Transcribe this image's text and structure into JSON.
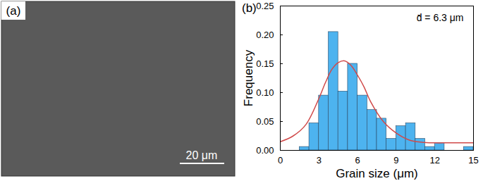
{
  "image": {
    "label": "(a)",
    "scale_bar": "20 μm"
  },
  "chart_data": {
    "type": "histogram",
    "panel_label": "(b)",
    "annotation": "d̄ = 6.3 μm",
    "xlabel": "Grain size (μm)",
    "ylabel": "Frequency",
    "bins": [
      1.5,
      2.25,
      3,
      3.75,
      4.5,
      5.25,
      6,
      6.75,
      7.5,
      8.25,
      9,
      9.75,
      10.5,
      11.25,
      12,
      12.75,
      13.5,
      14.25,
      15
    ],
    "series": [
      {
        "type": "bar",
        "color": "#4db3ef",
        "values": [
          0.006,
          0.047,
          0.095,
          0.205,
          0.102,
          0.15,
          0.095,
          0.07,
          0.055,
          0.02,
          0.042,
          0.047,
          0.02,
          0.006,
          0.013,
          0,
          0,
          0.006
        ]
      },
      {
        "type": "line",
        "color": "#d04a4a",
        "x": [
          0,
          1,
          2,
          3,
          3.5,
          4,
          4.5,
          5,
          5.5,
          6,
          6.5,
          7,
          8,
          9,
          10,
          11,
          12,
          13,
          14,
          15
        ],
        "values": [
          0.015,
          0.025,
          0.045,
          0.09,
          0.117,
          0.14,
          0.152,
          0.155,
          0.147,
          0.13,
          0.11,
          0.085,
          0.05,
          0.03,
          0.018,
          0.014,
          0.013,
          0.013,
          0.013,
          0.013
        ]
      }
    ],
    "xlim": [
      0,
      15
    ],
    "xticks": [
      0,
      3,
      6,
      9,
      12,
      15
    ],
    "ylim": [
      0,
      0.25
    ],
    "yticks": [
      {
        "value": 0,
        "label": "0.00"
      },
      {
        "value": 0.05,
        "label": "0.05"
      },
      {
        "value": 0.1,
        "label": "0.10"
      },
      {
        "value": 0.15,
        "label": "0.15"
      },
      {
        "value": 0.2,
        "label": "0.20"
      },
      {
        "value": 0.25,
        "label": "0.25"
      }
    ]
  }
}
